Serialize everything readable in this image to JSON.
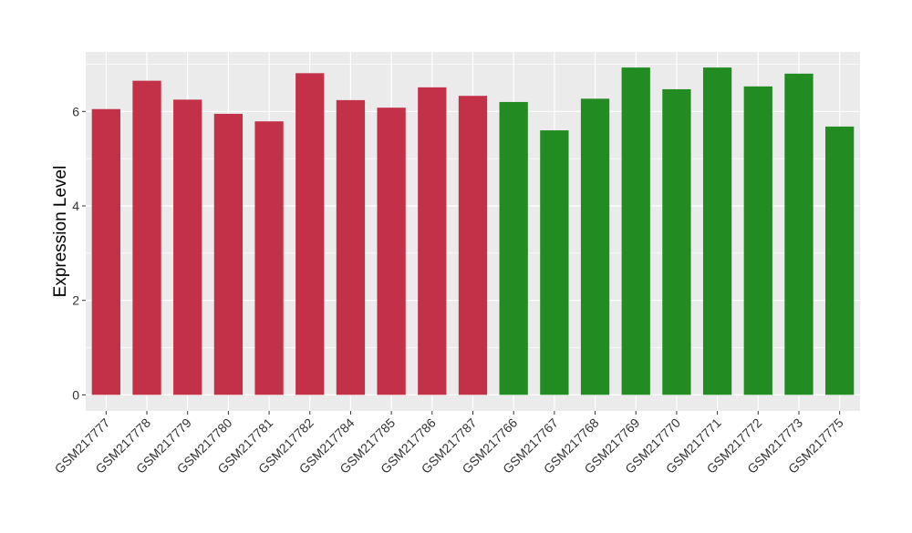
{
  "chart_data": {
    "type": "bar",
    "title": "",
    "xlabel": "",
    "ylabel": "Expression Level",
    "ylim": [
      -0.34,
      7.26
    ],
    "yticks": [
      0,
      2,
      4,
      6
    ],
    "grid": true,
    "legend": "none",
    "categories": [
      "GSM217777",
      "GSM217778",
      "GSM217779",
      "GSM217780",
      "GSM217781",
      "GSM217782",
      "GSM217784",
      "GSM217785",
      "GSM217786",
      "GSM217787",
      "GSM217766",
      "GSM217767",
      "GSM217768",
      "GSM217769",
      "GSM217770",
      "GSM217771",
      "GSM217772",
      "GSM217773",
      "GSM217775"
    ],
    "values": [
      6.05,
      6.65,
      6.25,
      5.95,
      5.79,
      6.81,
      6.24,
      6.08,
      6.51,
      6.33,
      6.2,
      5.6,
      6.27,
      6.93,
      6.47,
      6.93,
      6.53,
      6.8,
      5.68
    ],
    "groups": [
      "red",
      "red",
      "red",
      "red",
      "red",
      "red",
      "red",
      "red",
      "red",
      "red",
      "green",
      "green",
      "green",
      "green",
      "green",
      "green",
      "green",
      "green",
      "green"
    ],
    "colors": {
      "red": "#C23148",
      "green": "#228B22",
      "panel": "#EBEBEB",
      "grid": "#FFFFFF"
    }
  }
}
